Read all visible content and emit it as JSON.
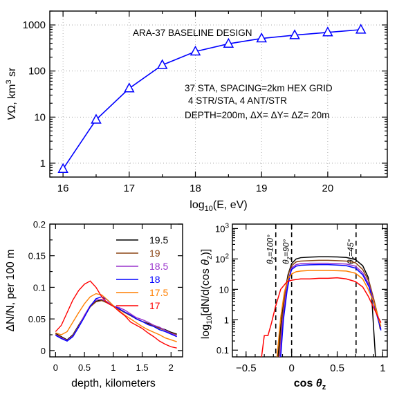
{
  "chart_data": [
    {
      "id": "top",
      "type": "line",
      "title": "ARA-37 BASELINE DESIGN",
      "annotations": [
        "37 STA, SPACING=2km HEX GRID",
        "4 STR/STA, 4 ANT/STR",
        "DEPTH=200m, ΔX= ΔY= ΔZ= 20m"
      ],
      "xlabel": "log10(E, eV)",
      "ylabel": "VΩ,  km³ sr",
      "xlim": [
        15.8,
        20.9
      ],
      "ylim": [
        0.5,
        2000
      ],
      "yscale": "log",
      "grid": true,
      "xticks": [
        "16",
        "17",
        "18",
        "19",
        "20"
      ],
      "yticks": [
        "1",
        "10",
        "100",
        "1000"
      ],
      "series": [
        {
          "color": "#0000ff",
          "marker": "triangle",
          "x": [
            16,
            16.5,
            17,
            17.5,
            18,
            18.5,
            19,
            19.5,
            20,
            20.5
          ],
          "y": [
            0.75,
            8.8,
            42,
            135,
            265,
            390,
            510,
            600,
            690,
            790
          ]
        }
      ]
    },
    {
      "id": "depth",
      "type": "line",
      "xlabel": "depth, kilometers",
      "ylabel": "ΔN/N, per 100 m",
      "xlim": [
        -0.1,
        2.2
      ],
      "ylim": [
        -0.01,
        0.2
      ],
      "xticks": [
        "0",
        "0.5",
        "1",
        "1.5",
        "2"
      ],
      "yticks": [
        "0",
        "0.05",
        "0.1",
        "0.15",
        "0.2"
      ],
      "legend_position": "top-right",
      "x": [
        0,
        0.1,
        0.2,
        0.3,
        0.4,
        0.5,
        0.6,
        0.7,
        0.8,
        0.9,
        1.0,
        1.1,
        1.2,
        1.3,
        1.4,
        1.5,
        1.6,
        1.7,
        1.8,
        1.9,
        2.0,
        2.1
      ],
      "series": [
        {
          "name": "19.5",
          "color": "#000000",
          "values": [
            0.027,
            0.022,
            0.017,
            0.025,
            0.04,
            0.055,
            0.07,
            0.078,
            0.08,
            0.076,
            0.07,
            0.066,
            0.06,
            0.056,
            0.05,
            0.046,
            0.043,
            0.04,
            0.036,
            0.033,
            0.029,
            0.026
          ]
        },
        {
          "name": "19",
          "color": "#8b4513",
          "values": [
            0.026,
            0.021,
            0.016,
            0.024,
            0.039,
            0.054,
            0.069,
            0.077,
            0.079,
            0.075,
            0.07,
            0.065,
            0.06,
            0.055,
            0.05,
            0.046,
            0.042,
            0.039,
            0.035,
            0.032,
            0.028,
            0.025
          ]
        },
        {
          "name": "18.5",
          "color": "#9932cc",
          "values": [
            0.025,
            0.02,
            0.016,
            0.023,
            0.038,
            0.056,
            0.071,
            0.08,
            0.081,
            0.077,
            0.07,
            0.068,
            0.064,
            0.058,
            0.052,
            0.049,
            0.045,
            0.04,
            0.037,
            0.032,
            0.027,
            0.024
          ]
        },
        {
          "name": "18",
          "color": "#0000ff",
          "values": [
            0.024,
            0.019,
            0.015,
            0.022,
            0.037,
            0.053,
            0.07,
            0.082,
            0.085,
            0.08,
            0.071,
            0.066,
            0.061,
            0.056,
            0.05,
            0.046,
            0.041,
            0.038,
            0.033,
            0.03,
            0.026,
            0.022
          ]
        },
        {
          "name": "17.5",
          "color": "#ff7f00",
          "values": [
            0.028,
            0.025,
            0.03,
            0.045,
            0.06,
            0.074,
            0.085,
            0.09,
            0.088,
            0.08,
            0.071,
            0.063,
            0.056,
            0.05,
            0.044,
            0.038,
            0.033,
            0.029,
            0.025,
            0.02,
            0.017,
            0.014
          ]
        },
        {
          "name": "17",
          "color": "#ff0000",
          "values": [
            0.03,
            0.04,
            0.06,
            0.08,
            0.095,
            0.105,
            0.11,
            0.1,
            0.085,
            0.075,
            0.07,
            0.062,
            0.055,
            0.045,
            0.04,
            0.035,
            0.028,
            0.022,
            0.015,
            0.01,
            0.006,
            0.004
          ]
        }
      ]
    },
    {
      "id": "costheta",
      "type": "line",
      "xlabel": "cos θz",
      "ylabel": "log10[dN/d(cos θz)]",
      "xlim": [
        -0.65,
        1.05
      ],
      "ylim": [
        0.06,
        1400
      ],
      "yscale": "log",
      "xticks": [
        "−0.5",
        "0",
        "0.5",
        "1"
      ],
      "yticks": [
        "0.1",
        "1",
        "10",
        "10²",
        "10³"
      ],
      "vlines": [
        {
          "x": -0.174,
          "label": "θz=100°"
        },
        {
          "x": 0,
          "label": "θz=90°"
        },
        {
          "x": 0.707,
          "label": "θz=45°"
        }
      ],
      "series": [
        {
          "color": "#000000",
          "x": [
            -0.15,
            -0.12,
            -0.08,
            -0.04,
            0,
            0.05,
            0.1,
            0.2,
            0.3,
            0.4,
            0.5,
            0.6,
            0.7,
            0.78,
            0.84,
            0.88,
            0.9,
            0.92
          ],
          "y": [
            0.06,
            0.6,
            6,
            30,
            70,
            100,
            110,
            115,
            118,
            118,
            116,
            112,
            95,
            60,
            25,
            5,
            0.5,
            0.06
          ]
        },
        {
          "color": "#8b4513",
          "x": [
            -0.14,
            -0.11,
            -0.07,
            -0.03,
            0,
            0.05,
            0.1,
            0.2,
            0.3,
            0.4,
            0.5,
            0.6,
            0.7,
            0.78,
            0.85,
            0.9,
            0.95,
            0.97
          ],
          "y": [
            0.06,
            0.7,
            8,
            35,
            60,
            80,
            85,
            88,
            90,
            90,
            88,
            85,
            75,
            45,
            18,
            5,
            1.2,
            0.5
          ]
        },
        {
          "color": "#9932cc",
          "x": [
            -0.13,
            -0.1,
            -0.06,
            -0.02,
            0,
            0.05,
            0.1,
            0.2,
            0.3,
            0.4,
            0.5,
            0.6,
            0.7,
            0.78,
            0.85,
            0.9,
            0.95,
            0.98
          ],
          "y": [
            0.06,
            0.8,
            8,
            30,
            50,
            65,
            70,
            72,
            72,
            72,
            70,
            68,
            58,
            35,
            14,
            4,
            1.0,
            0.5
          ]
        },
        {
          "color": "#0000ff",
          "x": [
            -0.12,
            -0.09,
            -0.05,
            -0.02,
            0,
            0.05,
            0.1,
            0.2,
            0.3,
            0.4,
            0.5,
            0.6,
            0.7,
            0.78,
            0.85,
            0.9,
            0.95,
            0.98
          ],
          "y": [
            0.06,
            1,
            9,
            28,
            45,
            58,
            62,
            64,
            65,
            65,
            63,
            60,
            50,
            30,
            12,
            3.5,
            1.0,
            0.45
          ]
        },
        {
          "color": "#ff7f00",
          "x": [
            -0.16,
            -0.12,
            -0.08,
            -0.04,
            0,
            0.05,
            0.1,
            0.2,
            0.3,
            0.4,
            0.5,
            0.6,
            0.7,
            0.78,
            0.84,
            0.9,
            0.95,
            0.98
          ],
          "y": [
            0.06,
            1.2,
            8,
            22,
            32,
            38,
            40,
            42,
            42,
            42,
            41,
            40,
            34,
            22,
            10,
            4,
            1.2,
            0.6
          ]
        },
        {
          "color": "#ff0000",
          "x": [
            -0.33,
            -0.3,
            -0.26,
            -0.22,
            -0.18,
            -0.12,
            -0.05,
            0,
            0.05,
            0.1,
            0.2,
            0.3,
            0.4,
            0.5,
            0.6,
            0.7,
            0.78,
            0.84,
            0.9,
            0.95,
            0.98
          ],
          "y": [
            0.06,
            0.3,
            0.3,
            0.8,
            2.5,
            10,
            18,
            20,
            21,
            22,
            22,
            23,
            23,
            24,
            22,
            18,
            12,
            6,
            2.5,
            1.2,
            0.8
          ]
        }
      ]
    }
  ]
}
